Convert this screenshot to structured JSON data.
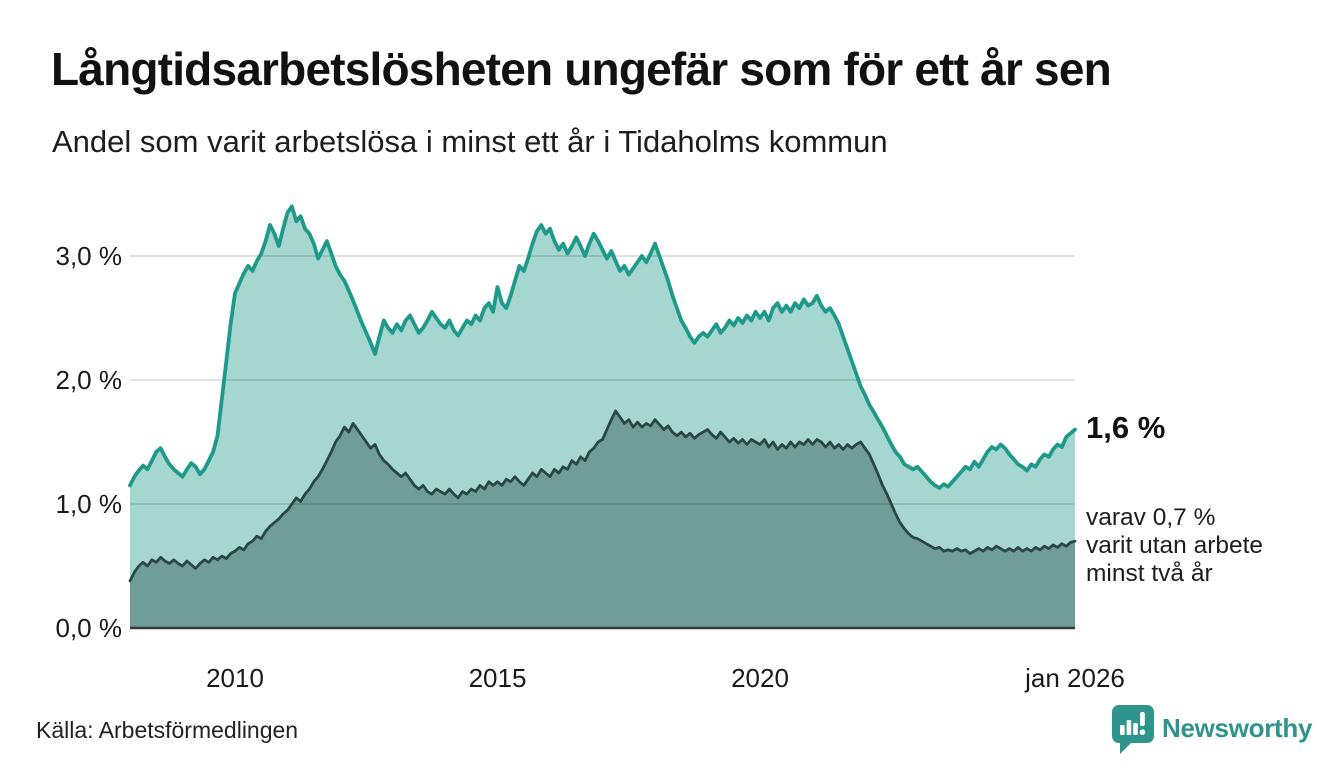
{
  "title": "Långtidsarbetslösheten ungefär som för ett år sen",
  "subtitle": "Andel som varit arbetslösa i minst ett år i Tidaholms kommun",
  "source": "Källa: Arbetsförmedlingen",
  "brand": {
    "name": "Newsworthy",
    "color": "#2f948c",
    "icon": "bar-chart-speech-bubble"
  },
  "annotations": {
    "latest_value": "1,6 %",
    "secondary_lines": [
      "varav 0,7 %",
      "varit utan arbete",
      "minst två år"
    ]
  },
  "colors": {
    "series1_line": "#1f998a",
    "series1_fill": "#a5d6cf",
    "series2_line": "#2a4843",
    "series2_fill": "#6f9d97",
    "grid": "#d9d9d9",
    "axis": "#3a3a3a",
    "text": "#1a1a1a"
  },
  "chart_data": {
    "type": "area",
    "title": "Långtidsarbetslösheten ungefär som för ett år sen",
    "subtitle": "Andel som varit arbetslösa i minst ett år i Tidaholms kommun",
    "unit": "%",
    "frequency": "monthly",
    "x_start": "2008-01",
    "x_end": "2026-01",
    "x_domain_years": [
      2008,
      2026
    ],
    "x_ticks": [
      {
        "label": "2010",
        "year": 2010
      },
      {
        "label": "2015",
        "year": 2015
      },
      {
        "label": "2020",
        "year": 2020
      },
      {
        "label": "jan 2026",
        "year": 2026
      }
    ],
    "y_ticks": [
      {
        "label": "0,0 %",
        "value": 0
      },
      {
        "label": "1,0 %",
        "value": 1
      },
      {
        "label": "2,0 %",
        "value": 2
      },
      {
        "label": "3,0 %",
        "value": 3
      }
    ],
    "ylim": [
      0,
      3.55
    ],
    "grid": true,
    "legend": "right-annotations",
    "series": [
      {
        "name": "Arbetslösa minst ett år",
        "latest_label": "1,6 %",
        "latest_value": 1.6,
        "line_color": "#1f998a",
        "fill_color": "#a5d6cf",
        "values": [
          1.15,
          1.22,
          1.27,
          1.31,
          1.28,
          1.35,
          1.42,
          1.45,
          1.38,
          1.32,
          1.28,
          1.25,
          1.22,
          1.28,
          1.33,
          1.3,
          1.24,
          1.28,
          1.35,
          1.42,
          1.55,
          1.85,
          2.15,
          2.45,
          2.7,
          2.78,
          2.86,
          2.92,
          2.88,
          2.96,
          3.02,
          3.12,
          3.25,
          3.18,
          3.08,
          3.22,
          3.35,
          3.4,
          3.28,
          3.32,
          3.22,
          3.18,
          3.1,
          2.98,
          3.05,
          3.12,
          3.02,
          2.92,
          2.85,
          2.8,
          2.72,
          2.64,
          2.55,
          2.46,
          2.38,
          2.3,
          2.21,
          2.35,
          2.48,
          2.42,
          2.38,
          2.45,
          2.4,
          2.48,
          2.52,
          2.45,
          2.38,
          2.42,
          2.48,
          2.55,
          2.5,
          2.45,
          2.42,
          2.48,
          2.4,
          2.36,
          2.42,
          2.48,
          2.45,
          2.52,
          2.48,
          2.58,
          2.62,
          2.55,
          2.75,
          2.62,
          2.58,
          2.68,
          2.8,
          2.92,
          2.88,
          2.98,
          3.1,
          3.2,
          3.25,
          3.18,
          3.22,
          3.12,
          3.05,
          3.1,
          3.02,
          3.08,
          3.15,
          3.08,
          3.0,
          3.1,
          3.18,
          3.12,
          3.05,
          2.98,
          3.04,
          2.96,
          2.88,
          2.92,
          2.85,
          2.9,
          2.95,
          3.0,
          2.95,
          3.02,
          3.1,
          3.0,
          2.9,
          2.8,
          2.68,
          2.58,
          2.48,
          2.42,
          2.35,
          2.3,
          2.35,
          2.38,
          2.35,
          2.4,
          2.45,
          2.38,
          2.42,
          2.48,
          2.44,
          2.5,
          2.46,
          2.52,
          2.48,
          2.55,
          2.5,
          2.55,
          2.48,
          2.58,
          2.62,
          2.55,
          2.6,
          2.55,
          2.62,
          2.58,
          2.65,
          2.6,
          2.62,
          2.68,
          2.6,
          2.55,
          2.58,
          2.52,
          2.45,
          2.35,
          2.25,
          2.15,
          2.05,
          1.95,
          1.88,
          1.8,
          1.74,
          1.68,
          1.62,
          1.55,
          1.48,
          1.42,
          1.38,
          1.32,
          1.3,
          1.28,
          1.3,
          1.26,
          1.22,
          1.18,
          1.15,
          1.13,
          1.16,
          1.14,
          1.18,
          1.22,
          1.26,
          1.3,
          1.28,
          1.34,
          1.3,
          1.36,
          1.42,
          1.46,
          1.44,
          1.48,
          1.45,
          1.4,
          1.36,
          1.32,
          1.3,
          1.27,
          1.32,
          1.3,
          1.36,
          1.4,
          1.38,
          1.44,
          1.48,
          1.46,
          1.54,
          1.57,
          1.6
        ]
      },
      {
        "name": "varav utan arbete minst två år",
        "latest_label": "varav 0,7 % varit utan arbete minst två år",
        "latest_value": 0.7,
        "line_color": "#2a4843",
        "fill_color": "#6f9d97",
        "values": [
          0.38,
          0.45,
          0.5,
          0.53,
          0.5,
          0.55,
          0.53,
          0.57,
          0.54,
          0.52,
          0.55,
          0.52,
          0.5,
          0.54,
          0.51,
          0.48,
          0.52,
          0.55,
          0.53,
          0.57,
          0.55,
          0.58,
          0.56,
          0.6,
          0.62,
          0.65,
          0.63,
          0.68,
          0.7,
          0.74,
          0.72,
          0.78,
          0.82,
          0.85,
          0.88,
          0.92,
          0.95,
          1.0,
          1.05,
          1.02,
          1.08,
          1.12,
          1.18,
          1.22,
          1.28,
          1.35,
          1.42,
          1.5,
          1.55,
          1.62,
          1.58,
          1.65,
          1.6,
          1.55,
          1.5,
          1.45,
          1.48,
          1.4,
          1.35,
          1.32,
          1.28,
          1.25,
          1.22,
          1.25,
          1.2,
          1.15,
          1.12,
          1.15,
          1.1,
          1.08,
          1.12,
          1.1,
          1.08,
          1.12,
          1.08,
          1.05,
          1.1,
          1.08,
          1.12,
          1.1,
          1.15,
          1.12,
          1.18,
          1.15,
          1.18,
          1.15,
          1.2,
          1.18,
          1.22,
          1.18,
          1.15,
          1.2,
          1.25,
          1.22,
          1.28,
          1.25,
          1.22,
          1.28,
          1.25,
          1.3,
          1.28,
          1.35,
          1.32,
          1.38,
          1.35,
          1.42,
          1.45,
          1.5,
          1.52,
          1.6,
          1.68,
          1.75,
          1.7,
          1.65,
          1.68,
          1.62,
          1.66,
          1.62,
          1.65,
          1.63,
          1.68,
          1.64,
          1.6,
          1.63,
          1.58,
          1.55,
          1.58,
          1.54,
          1.57,
          1.53,
          1.56,
          1.58,
          1.6,
          1.56,
          1.53,
          1.58,
          1.54,
          1.5,
          1.53,
          1.49,
          1.52,
          1.48,
          1.52,
          1.5,
          1.48,
          1.52,
          1.46,
          1.5,
          1.44,
          1.48,
          1.45,
          1.5,
          1.46,
          1.5,
          1.48,
          1.52,
          1.48,
          1.52,
          1.5,
          1.46,
          1.5,
          1.45,
          1.48,
          1.44,
          1.48,
          1.45,
          1.48,
          1.5,
          1.45,
          1.4,
          1.32,
          1.24,
          1.15,
          1.08,
          1.0,
          0.92,
          0.85,
          0.8,
          0.76,
          0.73,
          0.72,
          0.7,
          0.68,
          0.66,
          0.64,
          0.65,
          0.62,
          0.63,
          0.62,
          0.64,
          0.62,
          0.63,
          0.6,
          0.62,
          0.64,
          0.62,
          0.65,
          0.63,
          0.66,
          0.64,
          0.62,
          0.64,
          0.62,
          0.65,
          0.62,
          0.64,
          0.62,
          0.65,
          0.63,
          0.66,
          0.64,
          0.67,
          0.65,
          0.68,
          0.66,
          0.69,
          0.7
        ]
      }
    ]
  }
}
